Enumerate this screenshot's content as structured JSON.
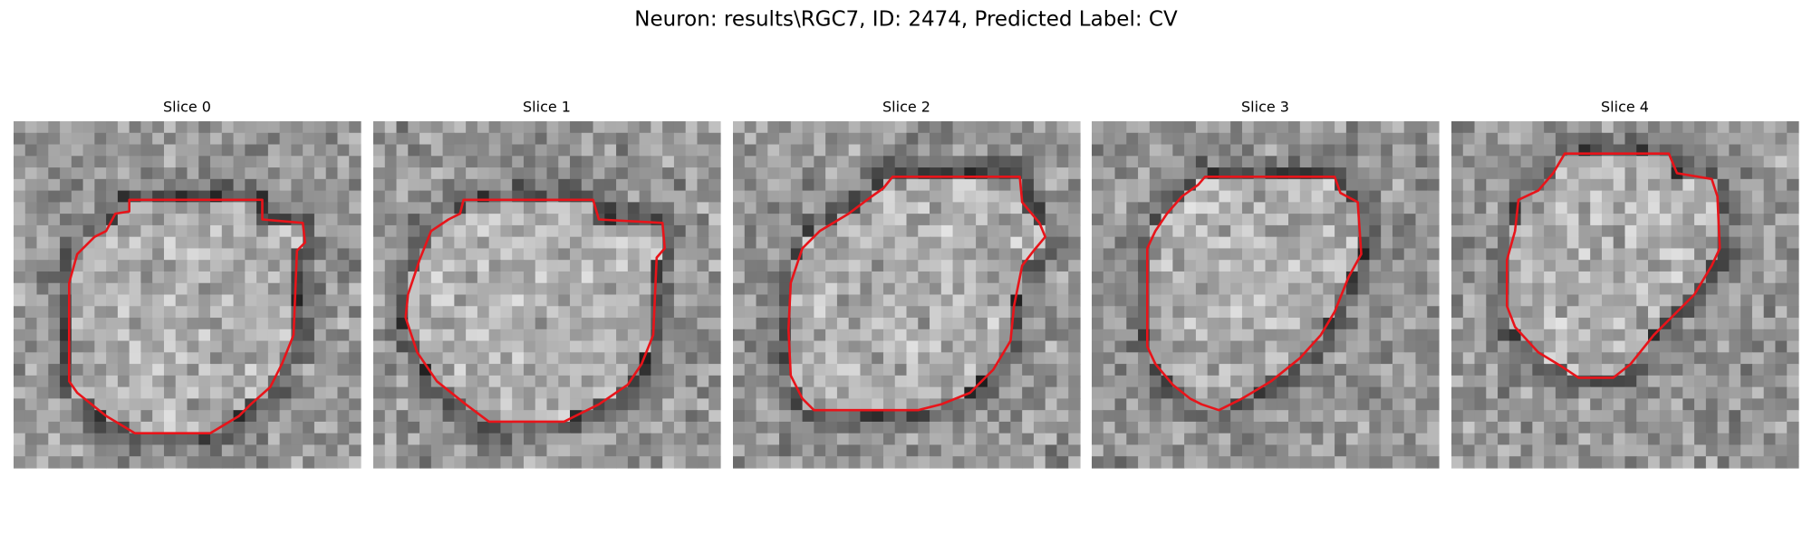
{
  "title": "Neuron: results\\RGC7, ID: 2474, Predicted Label: CV",
  "panels": [
    {
      "title": "Slice 0"
    },
    {
      "title": "Slice 1"
    },
    {
      "title": "Slice 2"
    },
    {
      "title": "Slice 3"
    },
    {
      "title": "Slice 4"
    }
  ]
}
